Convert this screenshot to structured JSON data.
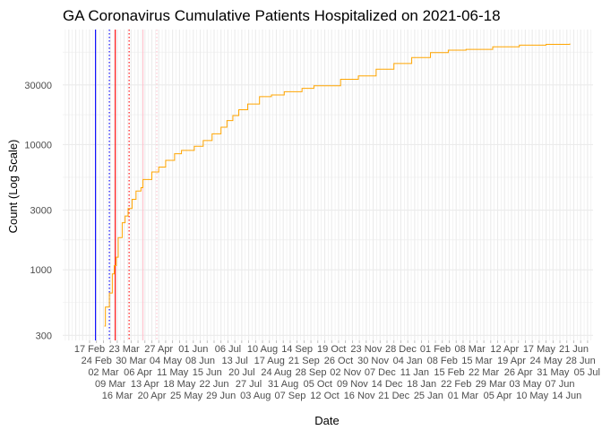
{
  "chart_data": {
    "type": "line",
    "title": "GA Coronavirus Cumulative Patients Hospitalized on 2021-06-18",
    "xlabel": "Date",
    "ylabel": "Count (Log Scale)",
    "y_scale": "log10",
    "ylim": [
      273,
      83000
    ],
    "y_ticks": [
      300,
      1000,
      3000,
      10000,
      30000
    ],
    "y_tick_labels": [
      "300",
      "1000",
      "3000",
      "10000",
      "30000"
    ],
    "x_origin": "2020-02-17",
    "x_unit": "days since 2020-02-17",
    "x_tick_labels": [
      "17 Feb",
      "24 Feb",
      "02 Mar",
      "09 Mar",
      "16 Mar",
      "23 Mar",
      "30 Mar",
      "06 Apr",
      "13 Apr",
      "20 Apr",
      "27 Apr",
      "04 May",
      "11 May",
      "18 May",
      "25 May",
      "01 Jun",
      "08 Jun",
      "15 Jun",
      "22 Jun",
      "29 Jun",
      "06 Jul",
      "13 Jul",
      "20 Jul",
      "27 Jul",
      "03 Aug",
      "10 Aug",
      "17 Aug",
      "24 Aug",
      "31 Aug",
      "07 Sep",
      "14 Sep",
      "21 Sep",
      "28 Sep",
      "05 Oct",
      "12 Oct",
      "19 Oct",
      "26 Oct",
      "02 Nov",
      "09 Nov",
      "16 Nov",
      "23 Nov",
      "30 Nov",
      "07 Dec",
      "14 Dec",
      "21 Dec",
      "28 Dec",
      "04 Jan",
      "11 Jan",
      "18 Jan",
      "25 Jan",
      "01 Feb",
      "08 Feb",
      "15 Feb",
      "22 Feb",
      "01 Mar",
      "08 Mar",
      "15 Mar",
      "22 Mar",
      "29 Mar",
      "05 Apr",
      "12 Apr",
      "19 Apr",
      "26 Apr",
      "03 May",
      "10 May",
      "17 May",
      "24 May",
      "31 May",
      "07 Jun",
      "14 Jun",
      "21 Jun",
      "28 Jun",
      "05 Jul"
    ],
    "grid": true,
    "series": [
      {
        "name": "Cumulative hospitalized",
        "color": "#FFA500",
        "x": [
          15,
          16,
          20,
          23,
          25,
          27,
          29,
          33,
          36,
          39,
          43,
          47,
          52,
          54,
          63,
          70,
          77,
          86,
          93,
          106,
          115,
          124,
          133,
          139,
          145,
          151,
          160,
          172,
          184,
          197,
          215,
          227,
          254,
          272,
          290,
          308,
          326,
          345,
          363,
          381,
          408,
          435,
          462,
          486
        ],
        "y": [
          355,
          504,
          653,
          927,
          1080,
          1260,
          1810,
          2380,
          2690,
          3090,
          3660,
          4260,
          4530,
          5270,
          6050,
          6620,
          7490,
          8460,
          8990,
          9710,
          10780,
          12190,
          13770,
          15560,
          17050,
          18990,
          21120,
          24180,
          24930,
          26480,
          28150,
          29500,
          33270,
          35380,
          40000,
          44500,
          49570,
          54300,
          56800,
          57700,
          60400,
          62300,
          63200,
          64200
        ]
      }
    ],
    "vlines": [
      {
        "x": 6,
        "color": "#0000FF",
        "style": "solid"
      },
      {
        "x": 20,
        "color": "#0000FF",
        "style": "dotted"
      },
      {
        "x": 26,
        "color": "#FF0000",
        "style": "solid"
      },
      {
        "x": 40,
        "color": "#FF0000",
        "style": "dotted"
      },
      {
        "x": 54,
        "color": "#FFC0CB",
        "style": "solid"
      },
      {
        "x": 68,
        "color": "#FFC0CB",
        "style": "dotted"
      }
    ]
  }
}
